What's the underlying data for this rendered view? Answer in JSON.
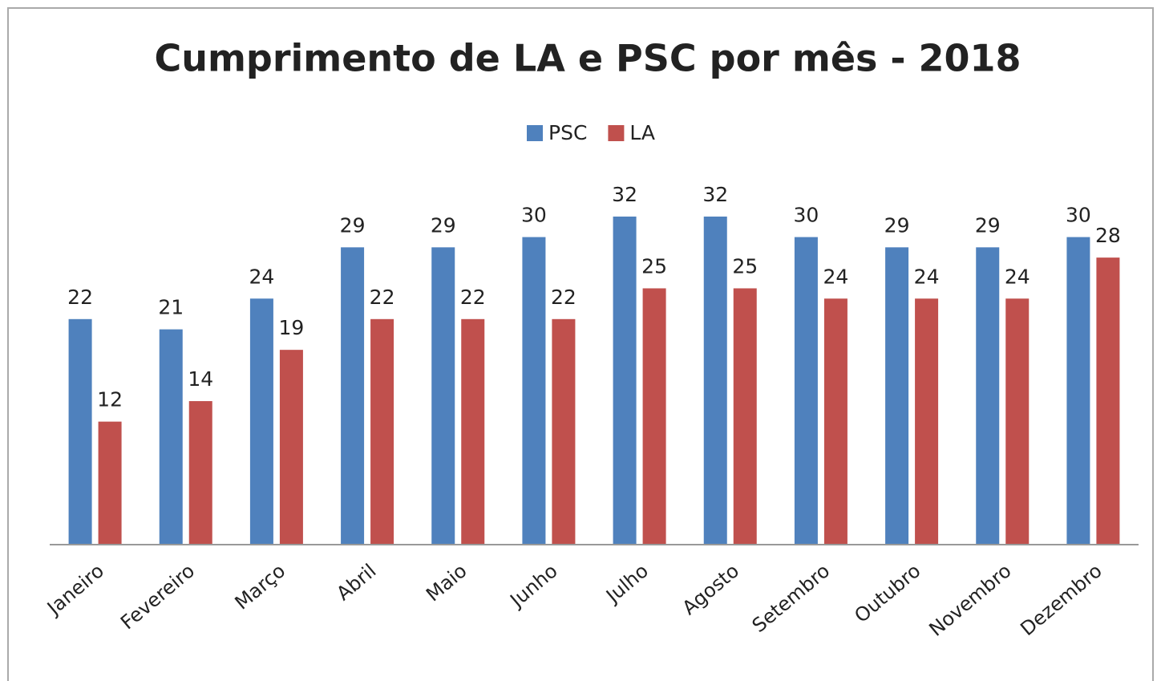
{
  "chart_data": {
    "type": "bar",
    "title": "Cumprimento de LA e PSC por mês - 2018",
    "categories": [
      "Janeiro",
      "Fevereiro",
      "Março",
      "Abril",
      "Maio",
      "Junho",
      "Julho",
      "Agosto",
      "Setembro",
      "Outubro",
      "Novembro",
      "Dezembro"
    ],
    "series": [
      {
        "name": "PSC",
        "color": "#4f81bd",
        "values": [
          22,
          21,
          24,
          29,
          29,
          30,
          32,
          32,
          30,
          29,
          29,
          30
        ]
      },
      {
        "name": "LA",
        "color": "#c0504d",
        "values": [
          12,
          14,
          19,
          22,
          22,
          22,
          25,
          25,
          24,
          24,
          24,
          28
        ]
      }
    ],
    "legend": "top"
  }
}
